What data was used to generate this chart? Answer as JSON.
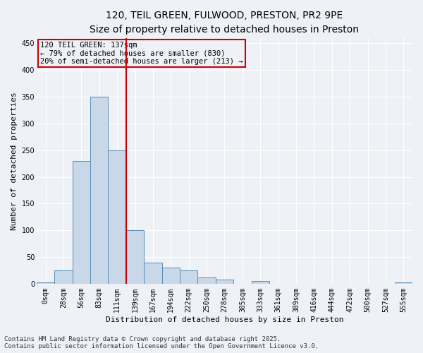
{
  "title_line1": "120, TEIL GREEN, FULWOOD, PRESTON, PR2 9PE",
  "title_line2": "Size of property relative to detached houses in Preston",
  "xlabel": "Distribution of detached houses by size in Preston",
  "ylabel": "Number of detached properties",
  "categories": [
    "0sqm",
    "28sqm",
    "56sqm",
    "83sqm",
    "111sqm",
    "139sqm",
    "167sqm",
    "194sqm",
    "222sqm",
    "250sqm",
    "278sqm",
    "305sqm",
    "333sqm",
    "361sqm",
    "389sqm",
    "416sqm",
    "444sqm",
    "472sqm",
    "500sqm",
    "527sqm",
    "555sqm"
  ],
  "bar_values": [
    2,
    25,
    230,
    350,
    250,
    100,
    40,
    30,
    25,
    12,
    8,
    0,
    5,
    0,
    0,
    0,
    0,
    0,
    0,
    0,
    2
  ],
  "bar_color": "#c8d8e8",
  "bar_edge_color": "#5b8db8",
  "bar_width": 1.0,
  "vline_x": 5,
  "vline_color": "#cc0000",
  "annotation_text": "120 TEIL GREEN: 137sqm\n← 79% of detached houses are smaller (830)\n20% of semi-detached houses are larger (213) →",
  "annotation_box_color": "#cc0000",
  "ylim": [
    0,
    460
  ],
  "yticks": [
    0,
    50,
    100,
    150,
    200,
    250,
    300,
    350,
    400,
    450
  ],
  "background_color": "#eef2f7",
  "grid_color": "#ffffff",
  "footer_line1": "Contains HM Land Registry data © Crown copyright and database right 2025.",
  "footer_line2": "Contains public sector information licensed under the Open Government Licence v3.0.",
  "title_fontsize": 10,
  "subtitle_fontsize": 9,
  "axis_label_fontsize": 8,
  "tick_fontsize": 7,
  "annotation_fontsize": 7.5,
  "footer_fontsize": 6.5
}
